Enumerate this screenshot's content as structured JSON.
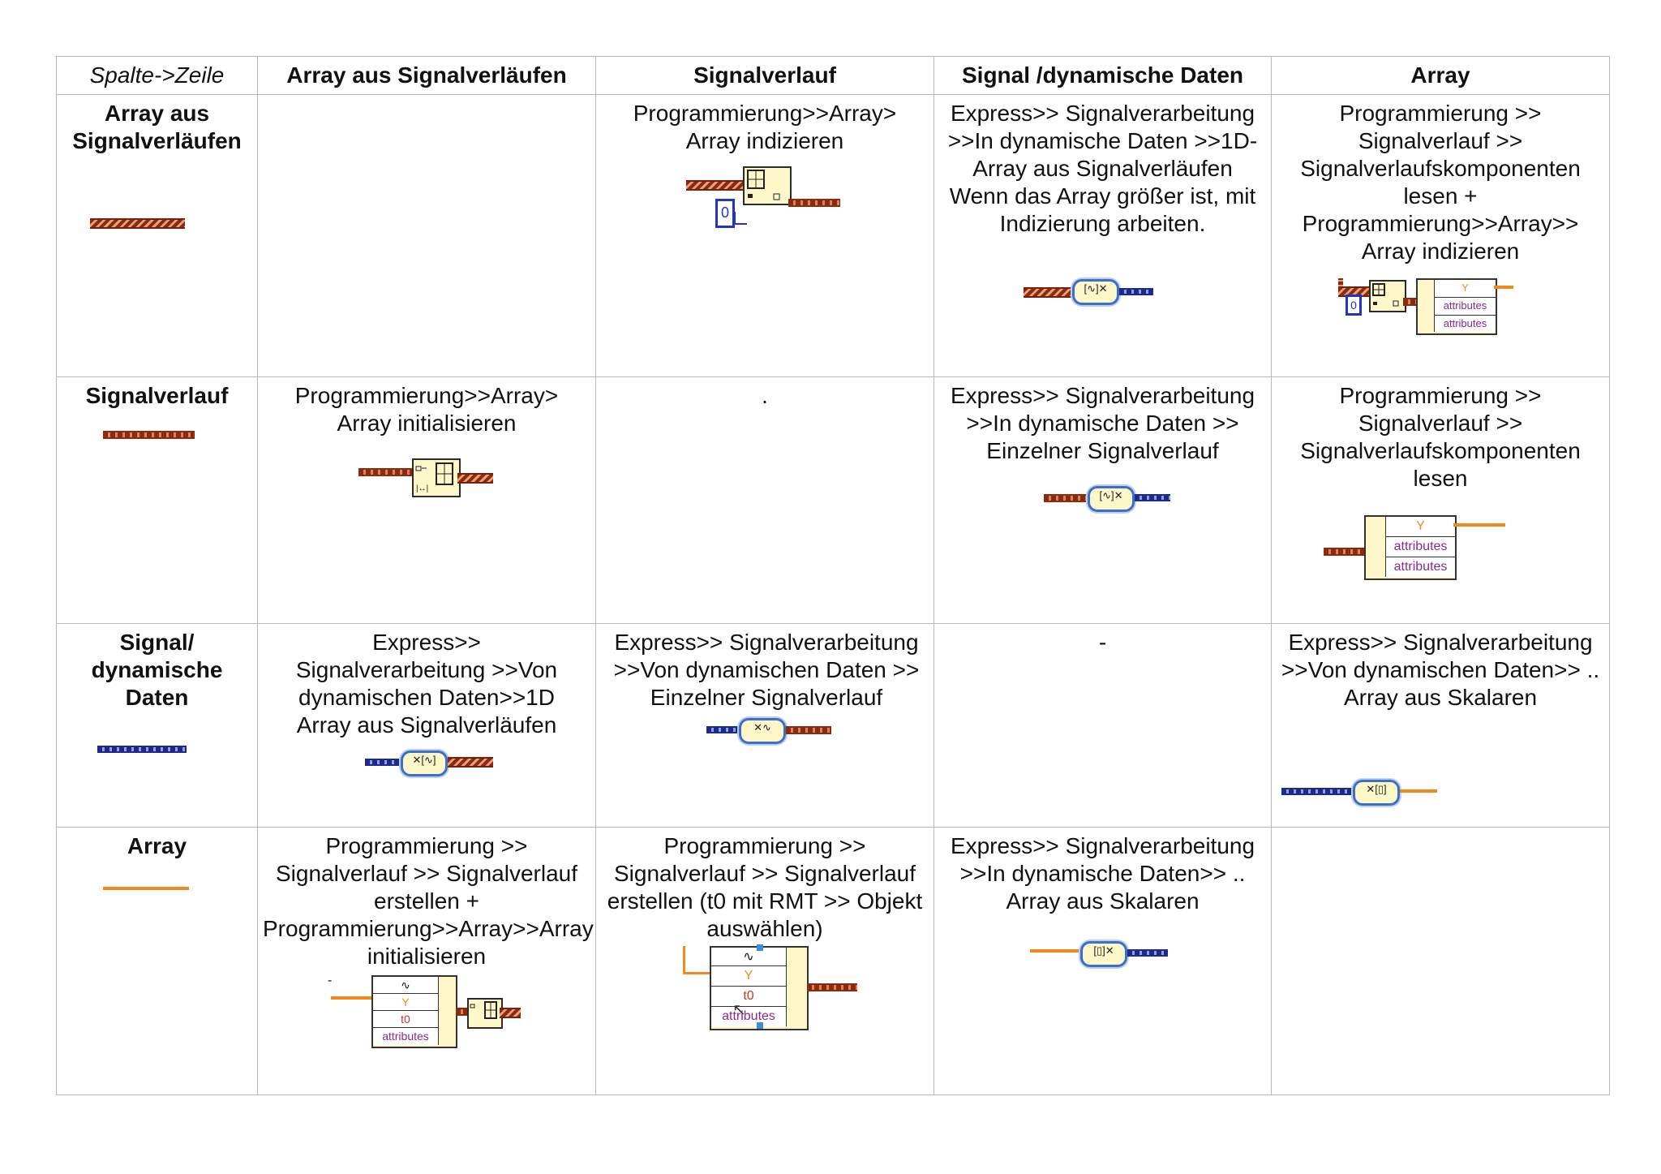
{
  "table": {
    "corner": "Spalte->Zeile",
    "columns": [
      "Array aus Signalverläufen",
      "Signalverlauf",
      "Signal /dynamische Daten",
      "Array"
    ],
    "rows": [
      {
        "label": "Array aus Signalverläufen",
        "cells": [
          "",
          "Programmierung>>Array> Array indizieren",
          "Express>> Signalverarbeitung >>In dynamische Daten >>1D-Array aus Signalverläufen Wenn das Array größer ist, mit Indizierung arbeiten.",
          "Programmierung >> Signalverlauf >> Signalverlaufskomponenten lesen + Programmierung>>Array>> Array indizieren"
        ]
      },
      {
        "label": "Signalverlauf",
        "cells": [
          "Programmierung>>Array> Array initialisieren",
          ".",
          "Express>> Signalverarbeitung >>In dynamische Daten >> Einzelner Signalverlauf",
          "Programmierung >> Signalverlauf >> Signalverlaufskomponenten lesen"
        ]
      },
      {
        "label": "Signal/ dynamische Daten",
        "cells": [
          "Express>> Signalverarbeitung >>Von dynamischen Daten>>1D Array aus Signalverläufen",
          "Express>> Signalverarbeitung >>Von dynamischen Daten >> Einzelner Signalverlauf",
          "-",
          "Express>> Signalverarbeitung >>Von dynamischen Daten>> .. Array aus Skalaren"
        ]
      },
      {
        "label": "Array",
        "cells": [
          "Programmierung >> Signalverlauf >> Signalverlauf erstellen + Programmierung>>Array>>Array initialisieren",
          "Programmierung >> Signalverlauf >> Signalverlauf erstellen (t0 mit RMT >> Objekt auswählen)",
          "Express>> Signalverarbeitung >>In dynamische Daten>> .. Array aus Skalaren",
          ""
        ]
      }
    ]
  },
  "diagram_labels": {
    "index_const": "0",
    "comp_y": "Y",
    "comp_t0": "t0",
    "comp_attr": "attributes",
    "stray_dash": "-"
  },
  "colors": {
    "waveform_wire": "#8a2a10",
    "dynamic_wire": "#1d2a8a",
    "array_wire": "#f08a1c",
    "node_fill": "#fdf7c9",
    "express_border": "#3e6fc7",
    "grid_line": "#b9b9b9"
  }
}
